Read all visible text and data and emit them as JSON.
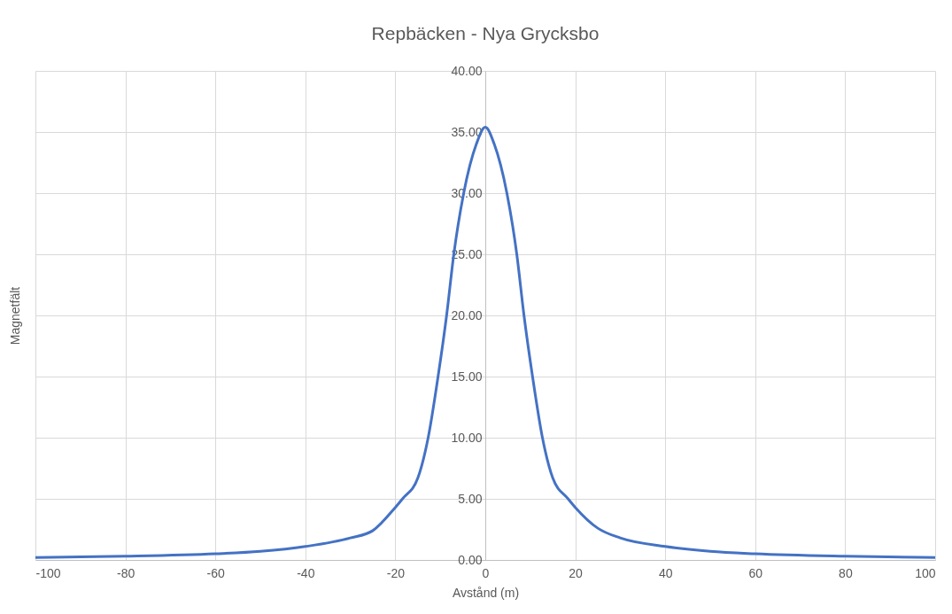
{
  "chart_data": {
    "type": "line",
    "title": "Repbäcken - Nya Grycksbo",
    "xlabel": "Avstånd (m)",
    "ylabel": "Magnetfält",
    "x": [
      -100,
      -80,
      -60,
      -50,
      -40,
      -30,
      -25,
      -20,
      -18.4,
      -15,
      -12.7,
      -10.5,
      -8.6,
      -7,
      -4.8,
      -2,
      0,
      2,
      4.8,
      7,
      8.6,
      10.5,
      12.7,
      15,
      18.4,
      20,
      25,
      30,
      40,
      50,
      60,
      80,
      100
    ],
    "series": [
      {
        "color": "#4472c4",
        "values": [
          0.2,
          0.3,
          0.5,
          0.7,
          1.1,
          1.8,
          2.4,
          4.3,
          5,
          6.7,
          10,
          15,
          20,
          25,
          30,
          34,
          35.4,
          34,
          30,
          25,
          20,
          15,
          10,
          6.7,
          5,
          4.3,
          2.6,
          1.8,
          1.1,
          0.7,
          0.5,
          0.3,
          0.2
        ]
      }
    ],
    "xlim": [
      -100,
      100
    ],
    "xticks": [
      -100,
      -80,
      -60,
      -40,
      -20,
      0,
      20,
      40,
      60,
      80,
      100
    ],
    "ylim": [
      0,
      40
    ],
    "yticks": [
      {
        "value": 0,
        "label": "0.00"
      },
      {
        "value": 5,
        "label": "5.00"
      },
      {
        "value": 10,
        "label": "10.00"
      },
      {
        "value": 15,
        "label": "15.00"
      },
      {
        "value": 20,
        "label": "20.00"
      },
      {
        "value": 25,
        "label": "25.00"
      },
      {
        "value": 30,
        "label": "30.00"
      },
      {
        "value": 35,
        "label": "35.00"
      },
      {
        "value": 40,
        "label": "40.00"
      }
    ],
    "grid": true,
    "marker": "none",
    "line_style": "solid"
  }
}
